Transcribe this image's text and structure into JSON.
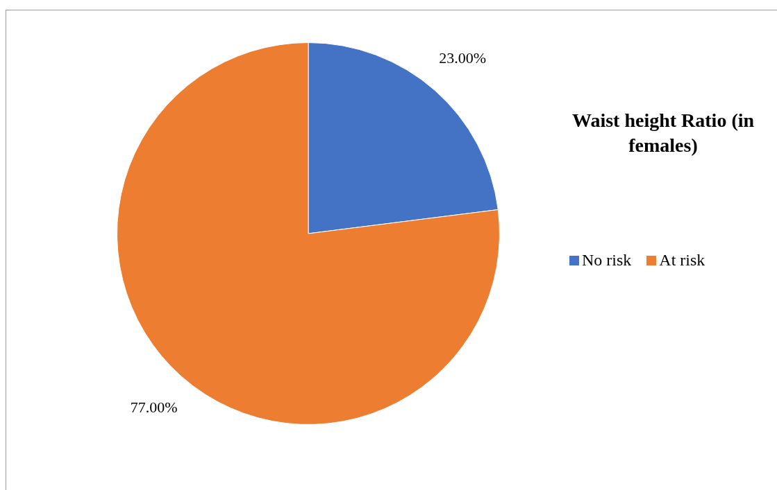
{
  "chart_data": {
    "type": "pie",
    "title": "Waist height Ratio (in females)",
    "categories": [
      "No risk",
      "At risk"
    ],
    "values": [
      23,
      77
    ],
    "colors": [
      "#4472c4",
      "#ed7d31"
    ],
    "value_labels": [
      "23.00%",
      "77.00%"
    ],
    "legend": "right"
  }
}
